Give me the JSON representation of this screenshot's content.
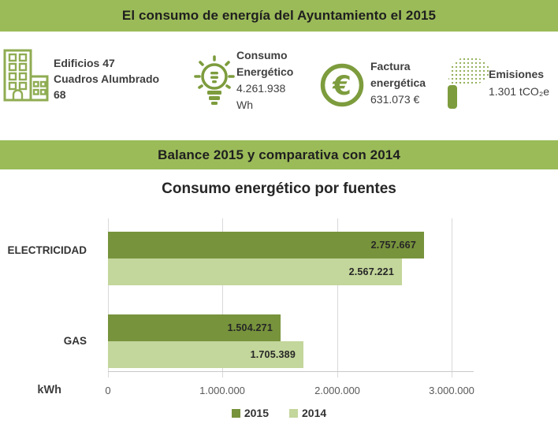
{
  "colors": {
    "banner_bg": "#9BBB59",
    "banner_text": "#1F1F1F",
    "bar_2015": "#77933C",
    "bar_2014": "#C3D69B",
    "icon_green": "#7D9C3D",
    "icon_green_light": "#8FAC52",
    "text_dark": "#3F3F3F",
    "axis_text": "#595959",
    "gridline": "#D9D9D9"
  },
  "banners": {
    "top": "El consumo de energía del Ayuntamiento el 2015",
    "section": "Balance 2015 y comparativa con 2014"
  },
  "stats": [
    {
      "icon": "buildings-icon",
      "lines": [
        "Edificios 47",
        "Cuadros Alumbrado",
        "68"
      ]
    },
    {
      "icon": "lightbulb-icon",
      "lines": [
        "Consumo",
        "Energético",
        "4.261.938",
        "Wh"
      ]
    },
    {
      "icon": "euro-coin-icon",
      "lines": [
        "Factura",
        "energética",
        "631.073 €"
      ]
    },
    {
      "icon": "chimney-emissions-icon",
      "lines": [
        "Emisiones",
        "1.301 tCO₂e"
      ]
    }
  ],
  "chart_data": {
    "type": "bar",
    "orientation": "horizontal",
    "title": "Consumo energético por fuentes",
    "categories": [
      "ELECTRICIDAD",
      "GAS"
    ],
    "series": [
      {
        "name": "2015",
        "color": "#77933C",
        "values": [
          2757667,
          1504271
        ],
        "labels": [
          "2.757.667",
          "1.504.271"
        ]
      },
      {
        "name": "2014",
        "color": "#C3D69B",
        "values": [
          2567221,
          1705389
        ],
        "labels": [
          "2.567.221",
          "1.705.389"
        ]
      }
    ],
    "xlabel": "kWh",
    "x_ticks": [
      "0",
      "1.000.000",
      "2.000.000",
      "3.000.000"
    ],
    "xlim": [
      0,
      3000000
    ],
    "grid": true,
    "legend_position": "bottom"
  }
}
